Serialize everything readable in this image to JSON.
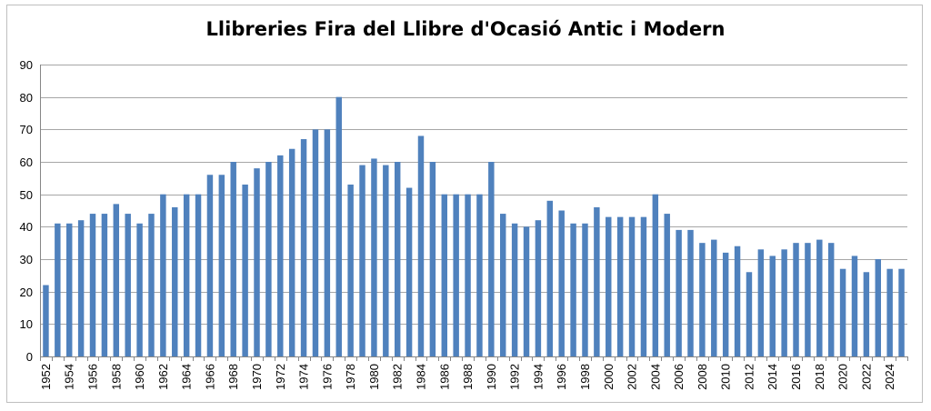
{
  "chart_data": {
    "type": "bar",
    "title": "Llibreries Fira del Llibre d'Ocasió Antic i Modern",
    "xlabel": "",
    "ylabel": "",
    "ylim": [
      0,
      90
    ],
    "yticks": [
      0,
      10,
      20,
      30,
      40,
      50,
      60,
      70,
      80,
      90
    ],
    "grid": true,
    "legend": "none",
    "bar_color": "#4f81bd",
    "grid_color": "#a6a6a6",
    "categories": [
      "1952",
      "1953",
      "1954",
      "1955",
      "1956",
      "1957",
      "1958",
      "1959",
      "1960",
      "1961",
      "1962",
      "1963",
      "1964",
      "1965",
      "1966",
      "1967",
      "1968",
      "1969",
      "1970",
      "1971",
      "1972",
      "1973",
      "1974",
      "1975",
      "1976",
      "1977",
      "1978",
      "1979",
      "1980",
      "1981",
      "1982",
      "1983",
      "1984",
      "1985",
      "1986",
      "1987",
      "1988",
      "1989",
      "1990",
      "1991",
      "1992",
      "1993",
      "1994",
      "1995",
      "1996",
      "1997",
      "1998",
      "1999",
      "2000",
      "2001",
      "2002",
      "2003",
      "2004",
      "2005",
      "2006",
      "2007",
      "2008",
      "2009",
      "2010",
      "2011",
      "2012",
      "2013",
      "2014",
      "2015",
      "2016",
      "2017",
      "2018",
      "2019",
      "2020",
      "2021",
      "2022",
      "2023",
      "2024",
      "2025"
    ],
    "tick_labels": [
      "1952",
      "1954",
      "1956",
      "1958",
      "1960",
      "1962",
      "1964",
      "1966",
      "1968",
      "1970",
      "1972",
      "1974",
      "1976",
      "1978",
      "1980",
      "1982",
      "1984",
      "1986",
      "1988",
      "1990",
      "1992",
      "1994",
      "1996",
      "1998",
      "2000",
      "2002",
      "2004",
      "2006",
      "2008",
      "2010",
      "2012",
      "2014",
      "2016",
      "2018",
      "2020",
      "2022",
      "2024"
    ],
    "values": [
      22,
      41,
      41,
      42,
      44,
      44,
      47,
      44,
      41,
      44,
      50,
      46,
      50,
      50,
      56,
      56,
      60,
      53,
      58,
      60,
      62,
      64,
      67,
      70,
      70,
      80,
      53,
      59,
      61,
      59,
      60,
      52,
      68,
      60,
      50,
      50,
      50,
      50,
      60,
      44,
      41,
      40,
      42,
      48,
      45,
      41,
      41,
      46,
      43,
      43,
      43,
      43,
      50,
      44,
      39,
      39,
      35,
      36,
      32,
      34,
      26,
      33,
      31,
      33,
      35,
      35,
      36,
      35,
      27,
      31,
      26,
      30,
      27,
      27
    ]
  }
}
